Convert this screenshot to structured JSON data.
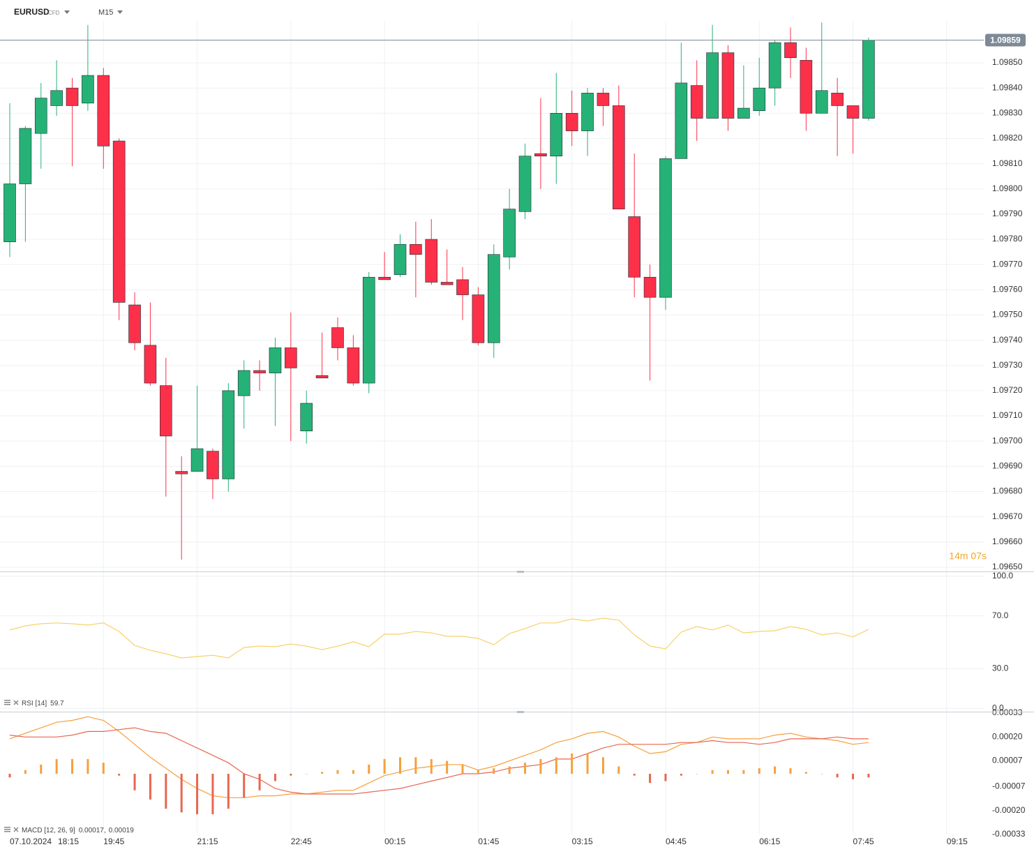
{
  "header": {
    "symbol": "EURUSD",
    "instrument_type": "CFD",
    "timeframe": "M15"
  },
  "countdown": "14m 07s",
  "chart_data": [
    {
      "type": "candlestick",
      "date": "07.10.2024",
      "categories": [
        "18:15",
        null,
        null,
        null,
        null,
        null,
        "19:45",
        null,
        null,
        null,
        null,
        null,
        "21:15",
        null,
        null,
        null,
        null,
        null,
        "22:45",
        null,
        null,
        null,
        null,
        null,
        "00:15",
        null,
        null,
        null,
        null,
        null,
        "01:45",
        null,
        null,
        null,
        null,
        null,
        "03:15",
        null,
        null,
        null,
        null,
        null,
        "04:45",
        null,
        null,
        null,
        null,
        null,
        "06:15",
        null,
        null,
        null,
        null,
        null,
        "07:45",
        null,
        null,
        null,
        null,
        null,
        "09:15"
      ],
      "open": [
        1.09779,
        1.09802,
        1.09822,
        1.09833,
        1.0984,
        1.09834,
        1.09845,
        1.09819,
        1.09754,
        1.09738,
        1.09722,
        1.09688,
        1.09688,
        1.09696,
        1.09685,
        1.09718,
        1.09728,
        1.09727,
        1.09737,
        1.09704,
        1.09726,
        1.09745,
        1.09737,
        1.09723,
        1.09765,
        1.09766,
        1.09778,
        1.0978,
        1.09763,
        1.09764,
        1.09758,
        1.09739,
        1.09773,
        1.09791,
        1.09814,
        1.09813,
        1.0983,
        1.09823,
        1.09838,
        1.09833,
        1.09789,
        1.09765,
        1.09757,
        1.09812,
        1.09841,
        1.09828,
        1.09854,
        1.09828,
        1.09831,
        1.0984,
        1.09858,
        1.09851,
        1.0983,
        1.09838,
        1.09833,
        1.09828,
        null,
        null,
        null,
        null,
        null
      ],
      "high": [
        1.09834,
        1.09825,
        1.09842,
        1.09851,
        1.09844,
        1.09865,
        1.09848,
        1.0982,
        1.09759,
        1.09755,
        1.09733,
        1.09694,
        1.09722,
        1.09697,
        1.09723,
        1.09732,
        1.09732,
        1.09741,
        1.09751,
        1.0972,
        1.09743,
        1.09749,
        1.09742,
        1.09767,
        1.09775,
        1.09782,
        1.09787,
        1.09788,
        1.09776,
        1.09769,
        1.09761,
        1.09778,
        1.098,
        1.09818,
        1.09836,
        1.09846,
        1.09839,
        1.0984,
        1.0984,
        1.09841,
        1.09814,
        1.0977,
        1.09813,
        1.09858,
        1.09851,
        1.09865,
        1.09857,
        1.09849,
        1.09852,
        1.09859,
        1.09864,
        1.09856,
        1.09866,
        1.09844,
        1.09833,
        1.0986,
        null,
        null,
        null,
        null,
        null
      ],
      "low": [
        1.09773,
        1.09779,
        1.09808,
        1.09829,
        1.09809,
        1.09831,
        1.09808,
        1.09748,
        1.09736,
        1.09722,
        1.09678,
        1.09653,
        1.09688,
        1.09677,
        1.0968,
        1.09705,
        1.0972,
        1.09706,
        1.097,
        1.09699,
        1.09725,
        1.09732,
        1.09722,
        1.09719,
        1.09764,
        1.09765,
        1.09757,
        1.09762,
        1.09762,
        1.09748,
        1.09738,
        1.09733,
        1.09768,
        1.09788,
        1.098,
        1.09802,
        1.09817,
        1.09813,
        1.09825,
        1.09792,
        1.09757,
        1.09724,
        1.09752,
        1.09812,
        1.09819,
        1.09828,
        1.09823,
        1.09828,
        1.09829,
        1.09833,
        1.09844,
        1.09823,
        1.0983,
        1.09813,
        1.09814,
        1.09827,
        null,
        null,
        null,
        null,
        null
      ],
      "close": [
        1.09802,
        1.09824,
        1.09836,
        1.09839,
        1.09833,
        1.09845,
        1.09817,
        1.09755,
        1.09739,
        1.09723,
        1.09702,
        1.09687,
        1.09697,
        1.09685,
        1.0972,
        1.09728,
        1.09727,
        1.09737,
        1.09729,
        1.09715,
        1.09725,
        1.09737,
        1.09723,
        1.09765,
        1.09764,
        1.09778,
        1.09774,
        1.09763,
        1.09762,
        1.09758,
        1.09739,
        1.09774,
        1.09792,
        1.09813,
        1.09813,
        1.0983,
        1.09823,
        1.09838,
        1.09833,
        1.09792,
        1.09765,
        1.09757,
        1.09812,
        1.09842,
        1.09828,
        1.09854,
        1.09828,
        1.09832,
        1.0984,
        1.09858,
        1.09852,
        1.0983,
        1.09839,
        1.09833,
        1.09828,
        1.09859,
        null,
        null,
        null,
        null,
        null
      ],
      "colors": {
        "up": "#26b276",
        "down": "#fc3049"
      },
      "last_price": 1.09859,
      "ylim": [
        1.096486,
        1.098666
      ],
      "yticks": [
        {
          "value": 1.0965,
          "label": "1.09650"
        },
        {
          "value": 1.0966,
          "label": "1.09660"
        },
        {
          "value": 1.0967,
          "label": "1.09670"
        },
        {
          "value": 1.0968,
          "label": "1.09680"
        },
        {
          "value": 1.0969,
          "label": "1.09690"
        },
        {
          "value": 1.097,
          "label": "1.09700"
        },
        {
          "value": 1.0971,
          "label": "1.09710"
        },
        {
          "value": 1.0972,
          "label": "1.09720"
        },
        {
          "value": 1.0973,
          "label": "1.09730"
        },
        {
          "value": 1.0974,
          "label": "1.09740"
        },
        {
          "value": 1.0975,
          "label": "1.09750"
        },
        {
          "value": 1.0976,
          "label": "1.09760"
        },
        {
          "value": 1.0977,
          "label": "1.09770"
        },
        {
          "value": 1.0978,
          "label": "1.09780"
        },
        {
          "value": 1.0979,
          "label": "1.09790"
        },
        {
          "value": 1.098,
          "label": "1.09800"
        },
        {
          "value": 1.0981,
          "label": "1.09810"
        },
        {
          "value": 1.0982,
          "label": "1.09820"
        },
        {
          "value": 1.0983,
          "label": "1.09830"
        },
        {
          "value": 1.0984,
          "label": "1.09840"
        },
        {
          "value": 1.0985,
          "label": "1.09850"
        }
      ],
      "grid": true
    },
    {
      "type": "line",
      "title": "RSI [14]",
      "series": [
        {
          "color": "#f7d26a",
          "values": [
            59.3,
            62.4,
            64,
            64.6,
            64,
            63,
            64.6,
            58.2,
            47.6,
            43.9,
            41.3,
            38.1,
            39.2,
            40.2,
            38.1,
            46,
            47.1,
            46.6,
            48.7,
            47.1,
            44.4,
            47.1,
            50.3,
            46.6,
            56.1,
            56.1,
            58.2,
            57.1,
            54.5,
            54.5,
            52.9,
            48.1,
            56.6,
            60.3,
            64.6,
            64.6,
            67.7,
            66.1,
            68.3,
            66.7,
            55.6,
            47.1,
            45,
            57.7,
            61.9,
            59.3,
            63,
            57.1,
            58.2,
            58.7,
            61.9,
            59.8,
            55.6,
            57.1,
            54,
            59.7
          ]
        }
      ],
      "ylim": [
        -2,
        102
      ],
      "yticks": [
        {
          "value": 100,
          "label": "100.0"
        },
        {
          "value": 70,
          "label": "70.0"
        },
        {
          "value": 30,
          "label": "30.0"
        },
        {
          "value": 0,
          "label": "0.0"
        }
      ],
      "grid": true
    },
    {
      "type": "macd",
      "title": "MACD [12, 26, 9]",
      "legend_separator": ",",
      "series": [
        {
          "kind": "line",
          "color": "#f5a03c",
          "values": [
            0.00019,
            0.00022,
            0.00025,
            0.00028,
            0.00029,
            0.00031,
            0.00029,
            0.00023,
            0.00016,
            9e-05,
            3e-05,
            -3e-05,
            -8e-05,
            -0.00012,
            -0.00013,
            -0.00013,
            -0.00012,
            -0.00012,
            -0.00011,
            -0.00011,
            -0.0001,
            -9e-05,
            -9e-05,
            -5e-05,
            -1e-05,
            1e-05,
            3e-05,
            4e-05,
            5e-05,
            5e-05,
            2e-05,
            4e-05,
            7e-05,
            0.0001,
            0.00013,
            0.00017,
            0.00019,
            0.00022,
            0.00023,
            0.0002,
            0.00015,
            0.00011,
            0.00012,
            0.00016,
            0.00017,
            0.0002,
            0.00019,
            0.00019,
            0.00019,
            0.00021,
            0.00022,
            0.0002,
            0.00019,
            0.00018,
            0.00016,
            0.00017
          ]
        },
        {
          "kind": "line",
          "color": "#e8664f",
          "values": [
            0.00021,
            0.0002,
            0.0002,
            0.0002,
            0.00021,
            0.00023,
            0.00023,
            0.00024,
            0.00025,
            0.00023,
            0.00022,
            0.00018,
            0.00014,
            0.0001,
            6e-05,
            0,
            -3e-05,
            -8e-05,
            -0.0001,
            -0.00011,
            -0.00011,
            -0.00011,
            -0.00011,
            -0.0001,
            -9e-05,
            -8e-05,
            -6e-05,
            -4e-05,
            -2e-05,
            0,
            0,
            1e-05,
            3e-05,
            4e-05,
            5e-05,
            8e-05,
            8e-05,
            0.00011,
            0.00014,
            0.00016,
            0.00016,
            0.00016,
            0.00016,
            0.00017,
            0.00017,
            0.00018,
            0.00017,
            0.00017,
            0.00016,
            0.00017,
            0.00019,
            0.00019,
            0.00019,
            0.0002,
            0.00019,
            0.00019
          ]
        },
        {
          "kind": "bar",
          "colors": {
            "positive": "#f5a03c",
            "negative": "#e8664f"
          },
          "values": [
            -2e-05,
            2e-05,
            5e-05,
            8e-05,
            8e-05,
            8e-05,
            6e-05,
            -1e-05,
            -9e-05,
            -0.00014,
            -0.00019,
            -0.00021,
            -0.00022,
            -0.00022,
            -0.00019,
            -0.00013,
            -9e-05,
            -4e-05,
            -1e-05,
            0,
            1e-05,
            2e-05,
            2e-05,
            5e-05,
            8e-05,
            9e-05,
            9e-05,
            8e-05,
            7e-05,
            5e-05,
            2e-05,
            3e-05,
            4e-05,
            6e-05,
            8e-05,
            9e-05,
            0.00011,
            0.00011,
            9e-05,
            4e-05,
            -1e-05,
            -5e-05,
            -4e-05,
            -1e-05,
            0,
            2e-05,
            2e-05,
            2e-05,
            3e-05,
            4e-05,
            3e-05,
            1e-05,
            0,
            -2e-05,
            -3e-05,
            -2e-05
          ]
        }
      ],
      "ylim": [
        -0.00033,
        0.00033
      ],
      "yticks": [
        0.00033,
        {
          "value": 0.0002,
          "label": "0.00020"
        },
        7e-05,
        -7e-05,
        {
          "value": -0.0002,
          "label": "-0.00020"
        },
        -0.00033
      ],
      "grid": false
    }
  ]
}
